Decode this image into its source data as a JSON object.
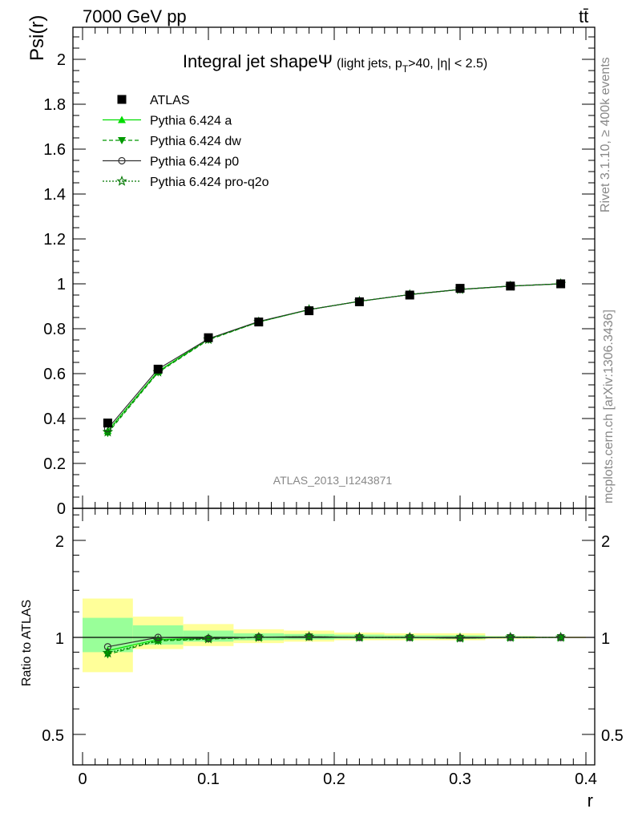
{
  "header": {
    "energy_label": "7000 GeV pp",
    "process_label": "tt̄"
  },
  "side": {
    "rivet_label": "Rivet 3.1.10, ≥ 400k events",
    "mcplots_label": "mcplots.cern.ch [arXiv:1306.3436]"
  },
  "analysis_label": "ATLAS_2013_I1243871",
  "colors": {
    "data": "#000000",
    "pythia_a": "#00dd00",
    "pythia_dw": "#009900",
    "pythia_p0": "#333333",
    "pythia_pro_q2o": "#007700",
    "band_inner": "#99ff99",
    "band_outer": "#ffff99"
  },
  "chart_data": [
    {
      "type": "line",
      "name": "main",
      "title": "Integral jet shapeΨ",
      "title_suffix": "(light jets, p",
      "title_sub": "T",
      "title_rest": ">40, |η| < 2.5)",
      "xlabel": "",
      "ylabel": "Psi(r)",
      "xlim": [
        0,
        0.4
      ],
      "ylim": [
        0,
        2.15
      ],
      "yticks": [
        0,
        0.2,
        0.4,
        0.6,
        0.8,
        1,
        1.2,
        1.4,
        1.6,
        1.8,
        2
      ],
      "ytick_labels": [
        "0",
        "0.2",
        "0.4",
        "0.6",
        "0.8",
        "1",
        "1.2",
        "1.4",
        "1.6",
        "1.8",
        "2"
      ],
      "legend_position": "top-left",
      "x": [
        0.02,
        0.06,
        0.1,
        0.14,
        0.18,
        0.22,
        0.26,
        0.3,
        0.34,
        0.38
      ],
      "series": [
        {
          "name": "ATLAS",
          "style": "data",
          "values": [
            0.38,
            0.62,
            0.76,
            0.83,
            0.88,
            0.92,
            0.95,
            0.98,
            0.99,
            1.0
          ]
        },
        {
          "name": "Pythia 6.424 a",
          "style": "pythia_a",
          "values": [
            0.345,
            0.61,
            0.755,
            0.83,
            0.885,
            0.922,
            0.952,
            0.975,
            0.99,
            1.0
          ]
        },
        {
          "name": "Pythia 6.424 dw",
          "style": "pythia_dw",
          "values": [
            0.335,
            0.605,
            0.75,
            0.83,
            0.885,
            0.922,
            0.952,
            0.975,
            0.99,
            1.0
          ]
        },
        {
          "name": "Pythia 6.424 p0",
          "style": "pythia_p0",
          "values": [
            0.355,
            0.62,
            0.755,
            0.832,
            0.885,
            0.922,
            0.952,
            0.975,
            0.99,
            1.0
          ]
        },
        {
          "name": "Pythia 6.424 pro-q2o",
          "style": "pythia_pro_q2o",
          "values": [
            0.34,
            0.607,
            0.752,
            0.83,
            0.885,
            0.922,
            0.952,
            0.975,
            0.99,
            1.0
          ]
        }
      ]
    },
    {
      "type": "line",
      "name": "ratio",
      "xlabel": "r",
      "ylabel": "Ratio to ATLAS",
      "xlim": [
        0,
        0.4
      ],
      "ylim": [
        0.4,
        2.5
      ],
      "y_scale": "log",
      "xticks": [
        0,
        0.1,
        0.2,
        0.3,
        0.4
      ],
      "xtick_labels": [
        "0",
        "0.1",
        "0.2",
        "0.3",
        "0.4"
      ],
      "yticks": [
        0.5,
        1,
        2
      ],
      "ytick_labels": [
        "0.5",
        "1",
        "2"
      ],
      "bins": [
        [
          0.0,
          0.04
        ],
        [
          0.04,
          0.08
        ],
        [
          0.08,
          0.12
        ],
        [
          0.12,
          0.16
        ],
        [
          0.16,
          0.2
        ],
        [
          0.2,
          0.24
        ],
        [
          0.24,
          0.28
        ],
        [
          0.28,
          0.32
        ],
        [
          0.32,
          0.36
        ],
        [
          0.36,
          0.4
        ]
      ],
      "band_inner": [
        [
          0.9,
          1.15
        ],
        [
          0.95,
          1.09
        ],
        [
          0.97,
          1.05
        ],
        [
          0.98,
          1.03
        ],
        [
          0.985,
          1.025
        ],
        [
          0.99,
          1.02
        ],
        [
          0.99,
          1.015
        ],
        [
          0.99,
          1.015
        ],
        [
          0.995,
          1.008
        ],
        [
          0.998,
          1.002
        ]
      ],
      "band_outer": [
        [
          0.78,
          1.32
        ],
        [
          0.92,
          1.16
        ],
        [
          0.94,
          1.1
        ],
        [
          0.96,
          1.06
        ],
        [
          0.97,
          1.05
        ],
        [
          0.98,
          1.035
        ],
        [
          0.98,
          1.03
        ],
        [
          0.98,
          1.03
        ],
        [
          0.99,
          1.01
        ],
        [
          0.995,
          1.005
        ]
      ],
      "x": [
        0.02,
        0.06,
        0.1,
        0.14,
        0.18,
        0.22,
        0.26,
        0.3,
        0.34,
        0.38
      ],
      "series": [
        {
          "name": "Pythia 6.424 a",
          "style": "pythia_a",
          "values": [
            0.91,
            0.985,
            0.993,
            1.0,
            1.005,
            1.0,
            1.0,
            0.995,
            1.0,
            1.0
          ]
        },
        {
          "name": "Pythia 6.424 dw",
          "style": "pythia_dw",
          "values": [
            0.885,
            0.975,
            0.987,
            1.0,
            1.005,
            1.0,
            1.0,
            0.995,
            1.0,
            1.0
          ]
        },
        {
          "name": "Pythia 6.424 p0",
          "style": "pythia_p0",
          "values": [
            0.935,
            1.0,
            0.993,
            1.002,
            1.005,
            1.0,
            1.0,
            0.995,
            1.0,
            1.0
          ]
        },
        {
          "name": "Pythia 6.424 pro-q2o",
          "style": "pythia_pro_q2o",
          "values": [
            0.895,
            0.979,
            0.99,
            1.0,
            1.005,
            1.0,
            1.0,
            0.995,
            1.0,
            1.0
          ]
        }
      ]
    }
  ]
}
